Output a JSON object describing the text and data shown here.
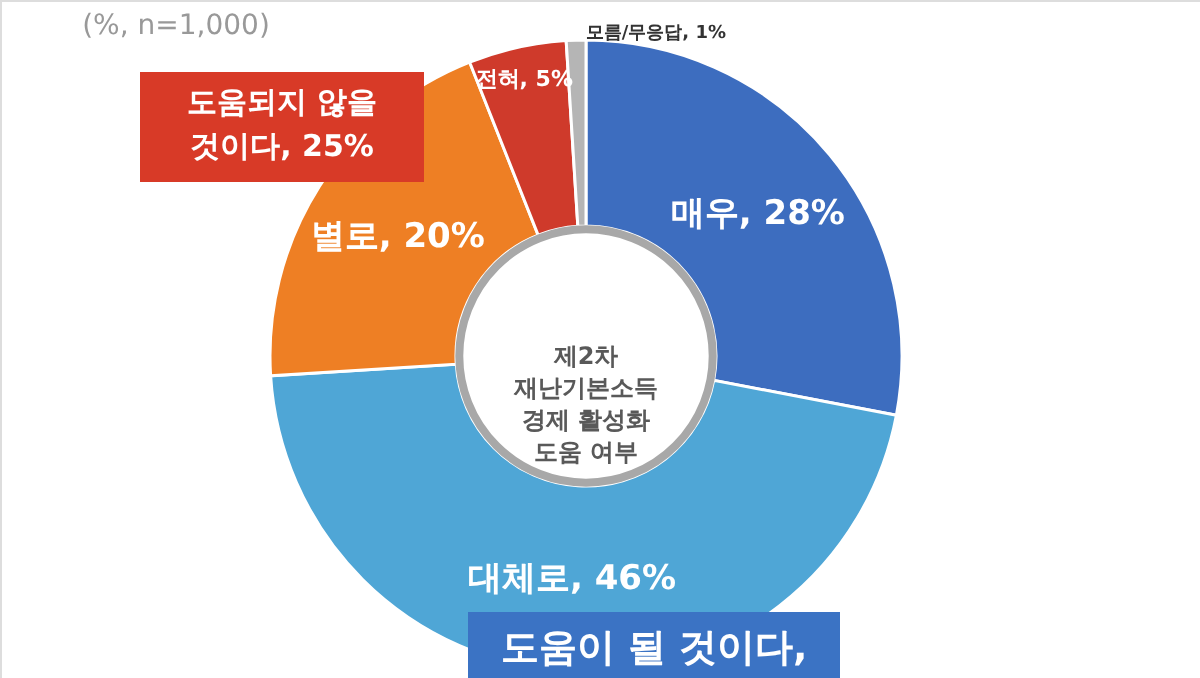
{
  "chart_data": {
    "type": "donut",
    "title": "제2차\n재난기본소득\n경제 활성화\n도움 여부",
    "categories": [
      "매우",
      "대체로",
      "별로",
      "전혀",
      "모름/무응답"
    ],
    "values": [
      28,
      46,
      20,
      5,
      1
    ],
    "value_labels": [
      "28%",
      "46%",
      "20%",
      "5%",
      "1%"
    ],
    "colors": [
      "#3d6dbf",
      "#4fa6d6",
      "#ee7f24",
      "#cf3a2b",
      "#b5b5b5"
    ],
    "annotations": [
      "(%, n=1,000)",
      "도움되지 않을\n것이다, 25%",
      "도움이 될 것이다,"
    ]
  }
}
